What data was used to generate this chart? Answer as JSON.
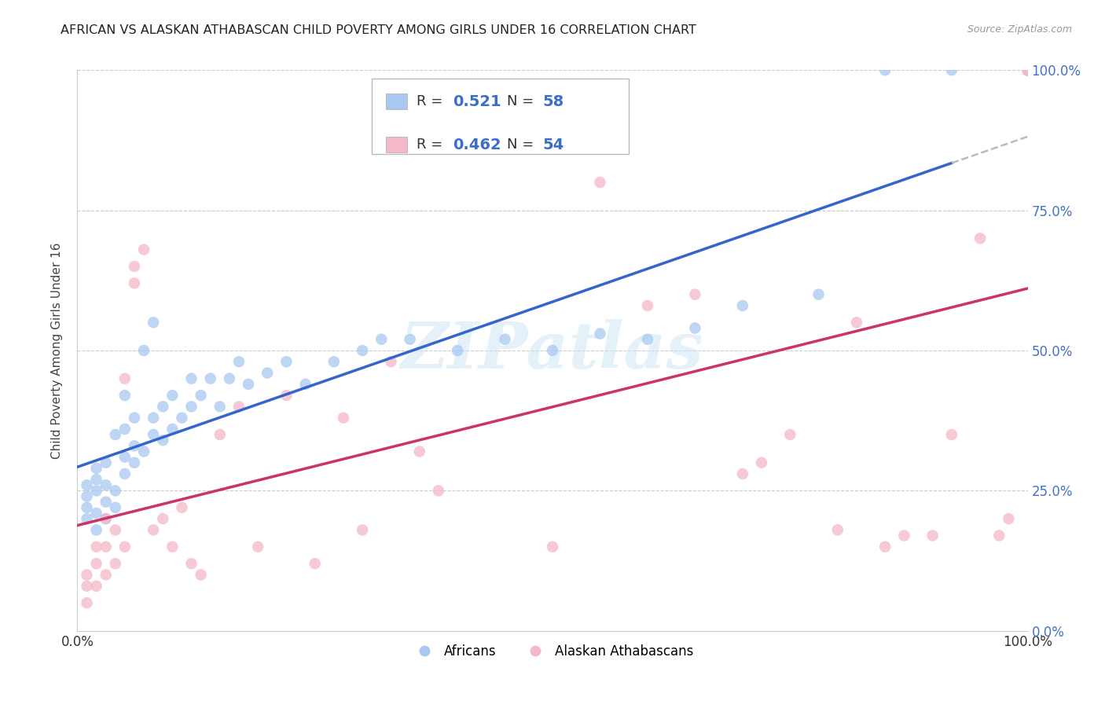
{
  "title": "AFRICAN VS ALASKAN ATHABASCAN CHILD POVERTY AMONG GIRLS UNDER 16 CORRELATION CHART",
  "source": "Source: ZipAtlas.com",
  "ylabel": "Child Poverty Among Girls Under 16",
  "blue_color": "#a8c8f0",
  "blue_line_color": "#3366cc",
  "pink_color": "#f5b8c8",
  "pink_line_color": "#cc3366",
  "dash_color": "#bbbbbb",
  "label1": "Africans",
  "label2": "Alaskan Athabascans",
  "watermark": "ZIPatlas",
  "blue_R_val": "0.521",
  "blue_N_val": "58",
  "pink_R_val": "0.462",
  "pink_N_val": "54",
  "blue_N": 58,
  "pink_N": 54,
  "background_color": "#ffffff",
  "grid_color": "#cccccc",
  "right_tick_color": "#4472c4",
  "blue_x": [
    0.01,
    0.01,
    0.01,
    0.01,
    0.02,
    0.02,
    0.02,
    0.02,
    0.02,
    0.03,
    0.03,
    0.03,
    0.03,
    0.04,
    0.04,
    0.04,
    0.05,
    0.05,
    0.05,
    0.05,
    0.06,
    0.06,
    0.06,
    0.07,
    0.07,
    0.08,
    0.08,
    0.08,
    0.09,
    0.09,
    0.1,
    0.1,
    0.11,
    0.12,
    0.12,
    0.13,
    0.14,
    0.15,
    0.16,
    0.17,
    0.18,
    0.2,
    0.22,
    0.24,
    0.27,
    0.3,
    0.32,
    0.35,
    0.4,
    0.45,
    0.5,
    0.55,
    0.6,
    0.65,
    0.7,
    0.78,
    0.85,
    0.92
  ],
  "blue_y": [
    0.2,
    0.22,
    0.24,
    0.26,
    0.18,
    0.21,
    0.25,
    0.27,
    0.29,
    0.2,
    0.23,
    0.26,
    0.3,
    0.22,
    0.25,
    0.35,
    0.28,
    0.31,
    0.36,
    0.42,
    0.3,
    0.33,
    0.38,
    0.32,
    0.5,
    0.35,
    0.38,
    0.55,
    0.34,
    0.4,
    0.36,
    0.42,
    0.38,
    0.4,
    0.45,
    0.42,
    0.45,
    0.4,
    0.45,
    0.48,
    0.44,
    0.46,
    0.48,
    0.44,
    0.48,
    0.5,
    0.52,
    0.52,
    0.5,
    0.52,
    0.5,
    0.53,
    0.52,
    0.54,
    0.58,
    0.6,
    1.0,
    1.0
  ],
  "pink_x": [
    0.01,
    0.01,
    0.01,
    0.02,
    0.02,
    0.02,
    0.03,
    0.03,
    0.03,
    0.04,
    0.04,
    0.05,
    0.05,
    0.06,
    0.06,
    0.07,
    0.08,
    0.09,
    0.1,
    0.11,
    0.12,
    0.13,
    0.15,
    0.17,
    0.19,
    0.22,
    0.25,
    0.28,
    0.3,
    0.33,
    0.36,
    0.38,
    0.5,
    0.55,
    0.6,
    0.65,
    0.7,
    0.72,
    0.75,
    0.8,
    0.82,
    0.85,
    0.87,
    0.9,
    0.92,
    0.95,
    0.97,
    0.98,
    1.0,
    1.0,
    1.0,
    1.0,
    1.0,
    1.0
  ],
  "pink_y": [
    0.05,
    0.08,
    0.1,
    0.08,
    0.12,
    0.15,
    0.1,
    0.15,
    0.2,
    0.12,
    0.18,
    0.15,
    0.45,
    0.62,
    0.65,
    0.68,
    0.18,
    0.2,
    0.15,
    0.22,
    0.12,
    0.1,
    0.35,
    0.4,
    0.15,
    0.42,
    0.12,
    0.38,
    0.18,
    0.48,
    0.32,
    0.25,
    0.15,
    0.8,
    0.58,
    0.6,
    0.28,
    0.3,
    0.35,
    0.18,
    0.55,
    0.15,
    0.17,
    0.17,
    0.35,
    0.7,
    0.17,
    0.2,
    1.0,
    1.0,
    1.0,
    1.0,
    1.0,
    1.0
  ]
}
